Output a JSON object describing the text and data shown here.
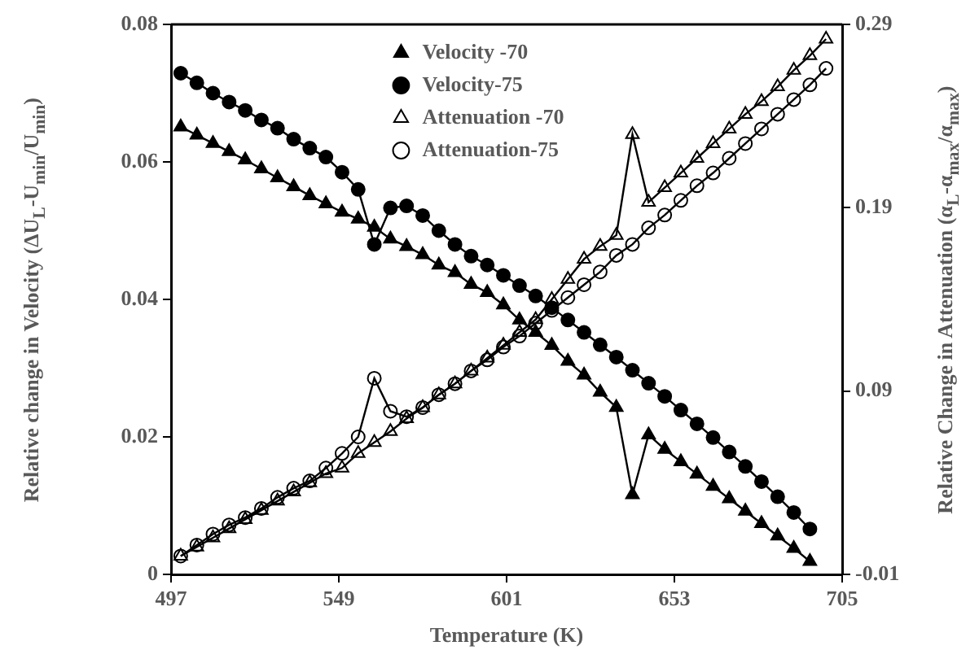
{
  "chart_data": {
    "type": "line",
    "xlabel": "Temperature (K)",
    "ylabel": "Relative change in Velocity (ΔU$_{L}$-U$_{min}$/U$_{min}$)",
    "y2label": "Relative Change in Attenuation (α$_{L}$-α$_{max}$/α$_{max}$)",
    "xlim": [
      497,
      705
    ],
    "xticks": [
      497,
      549,
      601,
      653,
      705
    ],
    "ylim": [
      0,
      0.08
    ],
    "yticks": [
      0,
      0.02,
      0.04,
      0.06,
      0.08
    ],
    "y2lim": [
      -0.01,
      0.29
    ],
    "y2ticks": [
      -0.01,
      0.09,
      0.19,
      0.29
    ],
    "grid": false,
    "legend": "top right",
    "line_style": "solid",
    "series": [
      {
        "name": "Velocity -70",
        "color": "#000000",
        "marker": "triangle",
        "x": [
          500,
          505,
          510,
          515,
          520,
          525,
          530,
          535,
          540,
          545,
          550,
          555,
          560,
          565,
          570,
          575,
          580,
          585,
          590,
          595,
          600,
          605,
          610,
          615,
          620,
          625,
          630,
          635,
          640,
          645,
          650,
          655,
          660,
          665,
          670,
          675,
          680,
          685,
          690,
          695
        ],
        "values": [
          0.0651,
          0.0639,
          0.0627,
          0.0615,
          0.0603,
          0.059,
          0.0577,
          0.0564,
          0.0551,
          0.0539,
          0.0527,
          0.0517,
          0.0505,
          0.0488,
          0.0477,
          0.0465,
          0.045,
          0.0439,
          0.0422,
          0.041,
          0.0392,
          0.037,
          0.0352,
          0.0333,
          0.031,
          0.029,
          0.0265,
          0.0243,
          0.0116,
          0.0203,
          0.0182,
          0.0164,
          0.0146,
          0.0128,
          0.011,
          0.0092,
          0.0074,
          0.0056,
          0.0038,
          0.0019
        ]
      },
      {
        "name": "Velocity-75",
        "color": "#000000",
        "marker": "circle",
        "x": [
          500,
          505,
          510,
          515,
          520,
          525,
          530,
          535,
          540,
          545,
          550,
          555,
          560,
          565,
          570,
          575,
          580,
          585,
          590,
          595,
          600,
          605,
          610,
          615,
          620,
          625,
          630,
          635,
          640,
          645,
          650,
          655,
          660,
          665,
          670,
          675,
          680,
          685,
          690,
          695
        ],
        "values": [
          0.0729,
          0.0715,
          0.07,
          0.0687,
          0.0675,
          0.0661,
          0.0649,
          0.0633,
          0.062,
          0.0607,
          0.0585,
          0.056,
          0.048,
          0.0533,
          0.0536,
          0.0522,
          0.05,
          0.048,
          0.0463,
          0.045,
          0.0435,
          0.042,
          0.0405,
          0.0388,
          0.037,
          0.0352,
          0.0334,
          0.0316,
          0.0297,
          0.0278,
          0.0259,
          0.0239,
          0.0219,
          0.0199,
          0.0178,
          0.0157,
          0.0135,
          0.0113,
          0.009,
          0.0066
        ]
      },
      {
        "name": "Attenuation -70",
        "color": "#000000",
        "marker": "triangle",
        "axis": "y2",
        "x": [
          500,
          505,
          510,
          515,
          520,
          525,
          530,
          535,
          540,
          545,
          550,
          555,
          560,
          565,
          570,
          575,
          580,
          585,
          590,
          595,
          600,
          605,
          610,
          615,
          620,
          625,
          630,
          635,
          640,
          645,
          650,
          655,
          660,
          665,
          670,
          675,
          680,
          685,
          690,
          695,
          700
        ],
        "values": [
          0.0,
          0.005,
          0.01,
          0.015,
          0.02,
          0.025,
          0.03,
          0.035,
          0.04,
          0.045,
          0.048,
          0.056,
          0.062,
          0.068,
          0.075,
          0.081,
          0.088,
          0.094,
          0.101,
          0.108,
          0.115,
          0.122,
          0.129,
          0.14,
          0.151,
          0.162,
          0.169,
          0.175,
          0.23,
          0.193,
          0.201,
          0.209,
          0.217,
          0.225,
          0.233,
          0.241,
          0.248,
          0.256,
          0.265,
          0.273,
          0.282
        ]
      },
      {
        "name": "Attenuation-75",
        "color": "#000000",
        "marker": "circle",
        "axis": "y2",
        "x": [
          500,
          505,
          510,
          515,
          520,
          525,
          530,
          535,
          540,
          545,
          550,
          555,
          560,
          565,
          570,
          575,
          580,
          585,
          590,
          595,
          600,
          605,
          610,
          615,
          620,
          625,
          630,
          635,
          640,
          645,
          650,
          655,
          660,
          665,
          670,
          675,
          680,
          685,
          690,
          695,
          700
        ],
        "values": [
          0.0,
          0.006,
          0.012,
          0.017,
          0.021,
          0.026,
          0.032,
          0.037,
          0.041,
          0.048,
          0.056,
          0.065,
          0.097,
          0.079,
          0.076,
          0.081,
          0.088,
          0.094,
          0.101,
          0.107,
          0.114,
          0.12,
          0.127,
          0.134,
          0.141,
          0.148,
          0.155,
          0.164,
          0.17,
          0.179,
          0.186,
          0.194,
          0.202,
          0.209,
          0.217,
          0.225,
          0.233,
          0.241,
          0.249,
          0.257,
          0.266
        ]
      }
    ]
  }
}
